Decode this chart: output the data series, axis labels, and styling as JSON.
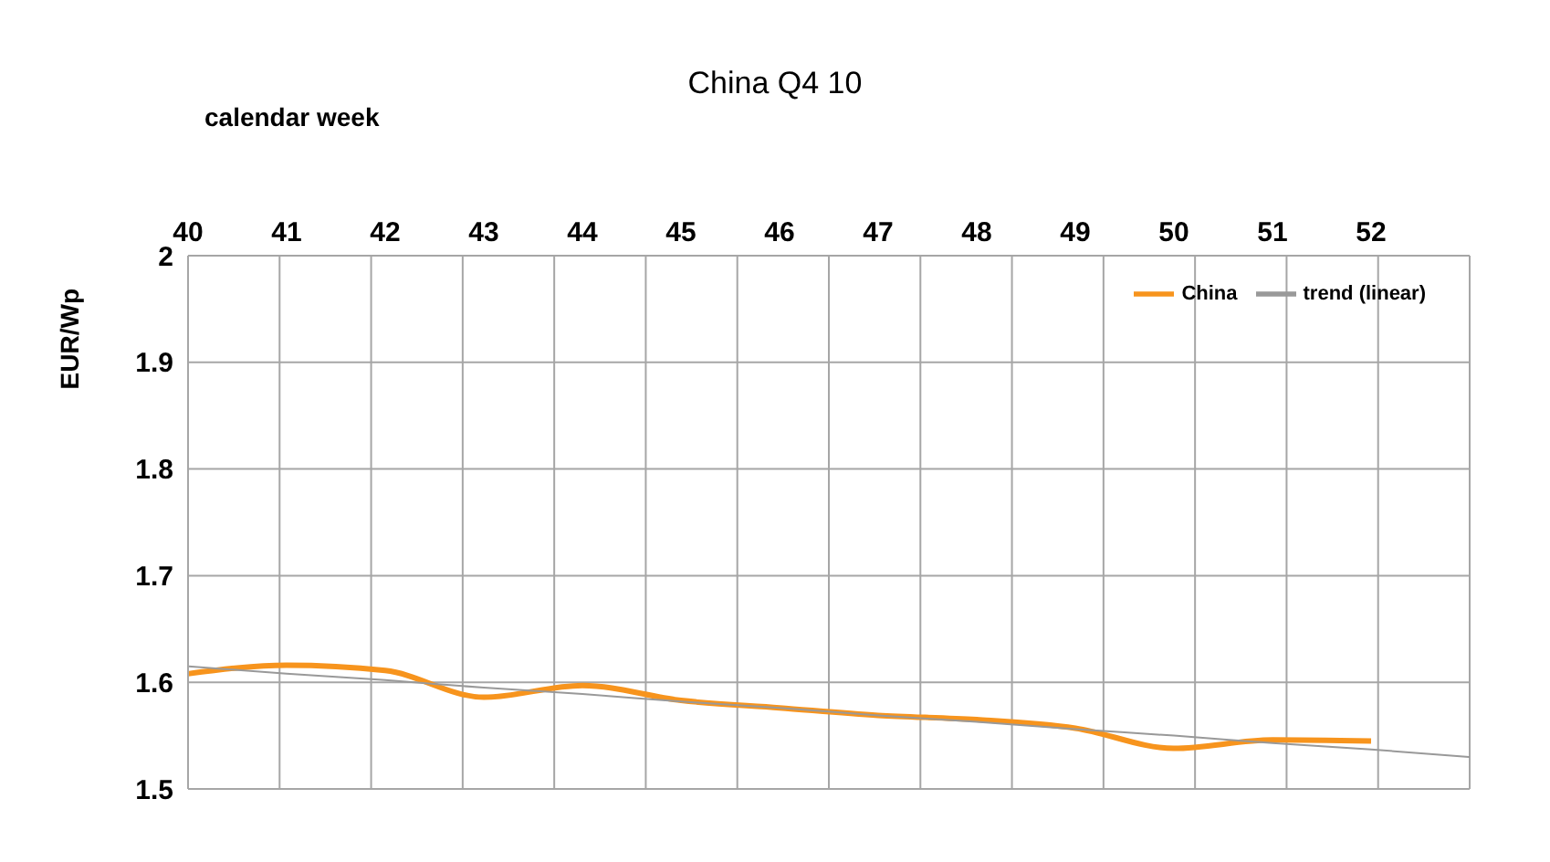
{
  "chart_data": {
    "type": "line",
    "title": "China Q4 10",
    "xlabel": "calendar week",
    "ylabel": "EUR/Wp",
    "categories": [
      "40",
      "41",
      "42",
      "43",
      "44",
      "45",
      "46",
      "47",
      "48",
      "49",
      "50",
      "51",
      "52",
      null
    ],
    "series": [
      {
        "name": "China",
        "color": "#f7941d",
        "values": [
          1.608,
          1.616,
          1.611,
          1.586,
          1.597,
          1.583,
          1.576,
          1.569,
          1.565,
          1.557,
          1.538,
          1.546,
          1.545,
          null
        ]
      },
      {
        "name": "trend (linear)",
        "type": "line",
        "color": "#999999",
        "values": [
          1.615,
          1.608,
          1.602,
          1.595,
          1.589,
          1.582,
          1.576,
          1.569,
          1.563,
          1.556,
          1.55,
          1.543,
          1.537,
          1.53
        ]
      }
    ],
    "ylim": [
      1.5,
      2
    ],
    "yticks": [
      1.5,
      1.6,
      1.7,
      1.8,
      1.9,
      2
    ],
    "grid": true,
    "legend": "top right"
  }
}
